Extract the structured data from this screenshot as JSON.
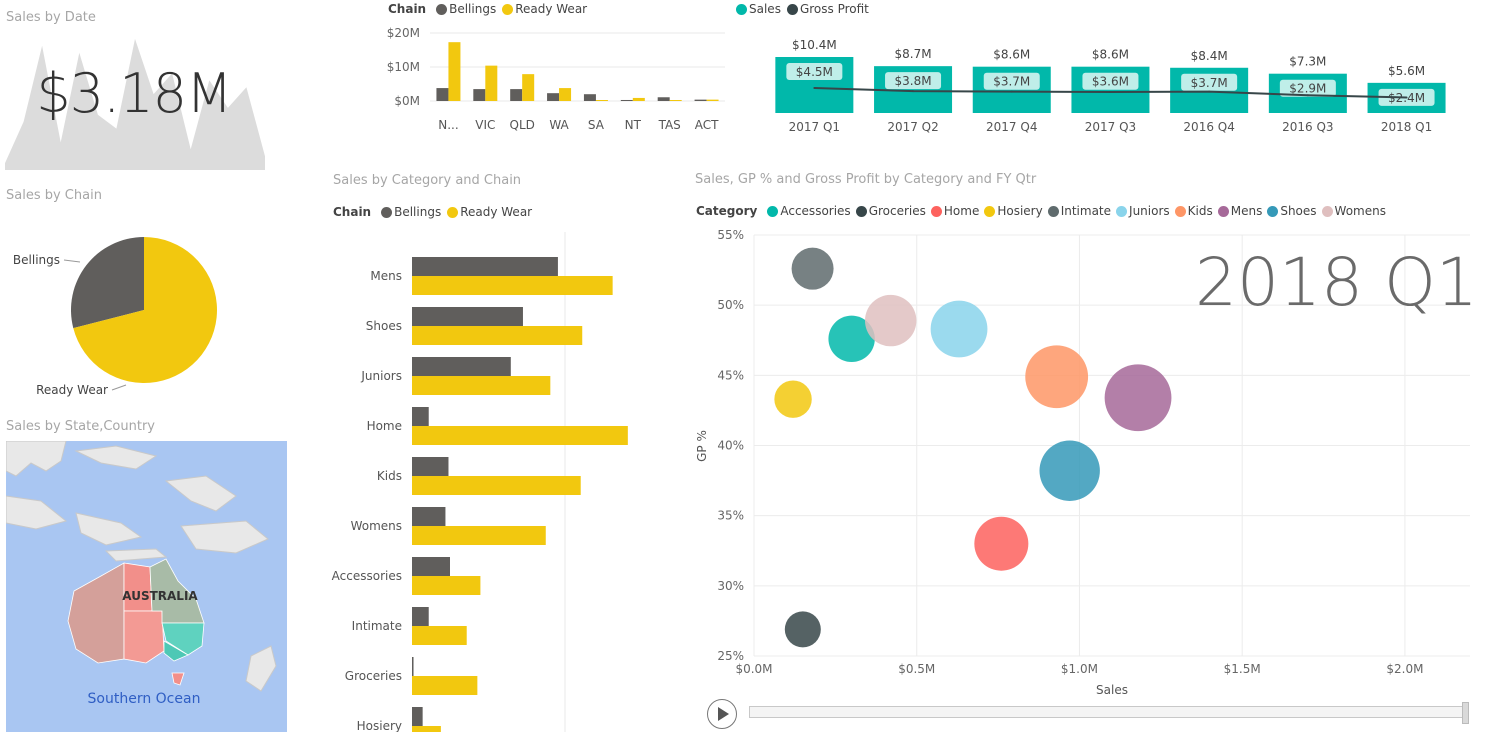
{
  "colors": {
    "bellings": "#605e5c",
    "ready_wear": "#f2c80f",
    "sales": "#01b8aa",
    "gross_profit": "#374649",
    "title_gray": "#a6a6a6"
  },
  "sales_by_date": {
    "title": "Sales by Date",
    "kpi": "$3.18M"
  },
  "chain_states": {
    "legend_title": "Chain",
    "legend_items": [
      "Bellings",
      "Ready Wear"
    ],
    "y_ticks": [
      "$20M",
      "$10M",
      "$0M"
    ]
  },
  "quarterly": {
    "legend_items": [
      "Sales",
      "Gross Profit"
    ]
  },
  "sales_by_chain": {
    "title": "Sales by Chain",
    "labels": [
      "Bellings",
      "Ready Wear"
    ]
  },
  "map": {
    "title": "Sales by State,Country",
    "country_label": "AUSTRALIA",
    "ocean_label": "Southern Ocean",
    "icon": "map-icon"
  },
  "category_chain": {
    "title": "Sales by Category and Chain",
    "legend_title": "Chain",
    "legend_items": [
      "Bellings",
      "Ready Wear"
    ]
  },
  "scatter": {
    "title": "Sales, GP % and Gross Profit by Category and FY Qtr",
    "legend_title": "Category",
    "legend_items": [
      "Accessories",
      "Groceries",
      "Home",
      "Hosiery",
      "Intimate",
      "Juniors",
      "Kids",
      "Mens",
      "Shoes",
      "Womens"
    ],
    "play_axis_label": "2018 Q1",
    "play_icon": "play-icon"
  },
  "chart_data": [
    {
      "type": "area",
      "title": "Sales by Date",
      "x": [
        1,
        2,
        3,
        4,
        5,
        6,
        7,
        8,
        9,
        10,
        11,
        12,
        13,
        14,
        15
      ],
      "values": [
        0.05,
        0.35,
        0.9,
        0.2,
        0.85,
        0.4,
        0.3,
        0.95,
        0.55,
        0.7,
        0.15,
        0.65,
        0.45,
        0.6,
        0.1
      ]
    },
    {
      "type": "bar",
      "title": "",
      "categories": [
        "N...",
        "VIC",
        "QLD",
        "WA",
        "SA",
        "NT",
        "TAS",
        "ACT"
      ],
      "series": [
        {
          "name": "Bellings",
          "values": [
            3.8,
            3.5,
            3.5,
            2.3,
            2.0,
            0.3,
            1.1,
            0.4
          ]
        },
        {
          "name": "Ready Wear",
          "values": [
            17.3,
            10.4,
            7.9,
            3.8,
            0.2,
            0.9,
            0.2,
            0.4
          ]
        }
      ],
      "ylim": [
        0,
        20
      ],
      "y_ticks": [
        "$0M",
        "$10M",
        "$20M"
      ]
    },
    {
      "type": "bar",
      "title": "",
      "categories": [
        "2017 Q1",
        "2017 Q2",
        "2017 Q4",
        "2017 Q3",
        "2016 Q4",
        "2016 Q3",
        "2018 Q1"
      ],
      "series": [
        {
          "name": "Sales",
          "values": [
            10.4,
            8.7,
            8.6,
            8.6,
            8.4,
            7.3,
            5.6
          ],
          "labels": [
            "$10.4M",
            "$8.7M",
            "$8.6M",
            "$8.6M",
            "$8.4M",
            "$7.3M",
            "$5.6M"
          ]
        },
        {
          "name": "Gross Profit",
          "values": [
            4.5,
            3.8,
            3.7,
            3.6,
            3.7,
            2.9,
            2.4
          ],
          "labels": [
            "$4.5M",
            "$3.8M",
            "$3.7M",
            "$3.6M",
            "$3.7M",
            "$2.9M",
            "$2.4M"
          ]
        }
      ]
    },
    {
      "type": "pie",
      "title": "Sales by Chain",
      "labels": [
        "Bellings",
        "Ready Wear"
      ],
      "values": [
        29,
        71
      ]
    },
    {
      "type": "bar",
      "title": "Sales by Category and Chain",
      "orientation": "horizontal",
      "categories": [
        "Mens",
        "Shoes",
        "Juniors",
        "Home",
        "Kids",
        "Womens",
        "Accessories",
        "Intimate",
        "Groceries",
        "Hosiery"
      ],
      "series": [
        {
          "name": "Bellings",
          "values": [
            0.96,
            0.73,
            0.65,
            0.11,
            0.24,
            0.22,
            0.25,
            0.11,
            0.01,
            0.07
          ]
        },
        {
          "name": "Ready Wear",
          "values": [
            1.32,
            1.12,
            0.91,
            1.42,
            1.11,
            0.88,
            0.45,
            0.36,
            0.43,
            0.19
          ]
        }
      ]
    },
    {
      "type": "scatter",
      "title": "Sales, GP % and Gross Profit by Category and FY Qtr",
      "xlabel": "Sales",
      "ylabel": "GP %",
      "xlim": [
        0,
        2.2
      ],
      "ylim": [
        25,
        55
      ],
      "x_ticks": [
        "$0.0M",
        "$0.5M",
        "$1.0M",
        "$1.5M",
        "$2.0M"
      ],
      "y_ticks": [
        "25%",
        "30%",
        "35%",
        "40%",
        "45%",
        "50%",
        "55%"
      ],
      "points": [
        {
          "name": "Accessories",
          "x": 0.3,
          "y": 47.6,
          "size": 0.14,
          "color": "#01b8aa"
        },
        {
          "name": "Groceries",
          "x": 0.15,
          "y": 26.9,
          "size": 0.04,
          "color": "#374649"
        },
        {
          "name": "Home",
          "x": 0.76,
          "y": 33.0,
          "size": 0.25,
          "color": "#fd625e"
        },
        {
          "name": "Hosiery",
          "x": 0.12,
          "y": 43.3,
          "size": 0.05,
          "color": "#f2c80f"
        },
        {
          "name": "Intimate",
          "x": 0.18,
          "y": 52.6,
          "size": 0.09,
          "color": "#5f6b6d"
        },
        {
          "name": "Juniors",
          "x": 0.63,
          "y": 48.3,
          "size": 0.3,
          "color": "#8ad4eb"
        },
        {
          "name": "Kids",
          "x": 0.93,
          "y": 44.9,
          "size": 0.42,
          "color": "#fe9666"
        },
        {
          "name": "Mens",
          "x": 1.18,
          "y": 43.4,
          "size": 0.51,
          "color": "#a66999"
        },
        {
          "name": "Shoes",
          "x": 0.97,
          "y": 38.2,
          "size": 0.37,
          "color": "#3599b8"
        },
        {
          "name": "Womens",
          "x": 0.42,
          "y": 48.9,
          "size": 0.21,
          "color": "#dfbfbf"
        }
      ]
    }
  ]
}
